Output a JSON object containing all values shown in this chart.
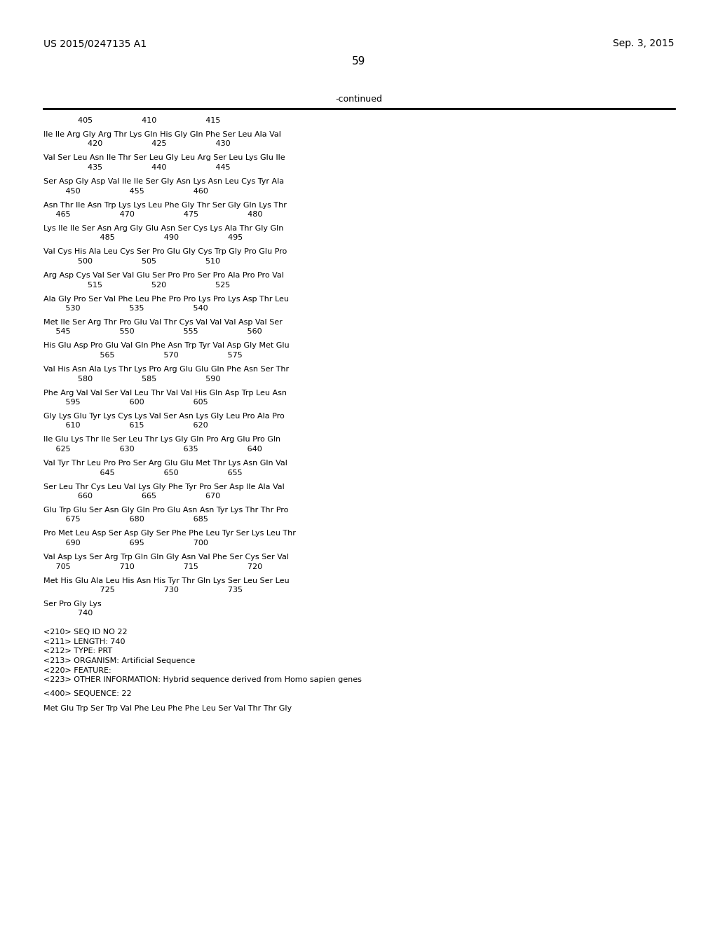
{
  "left_header": "US 2015/0247135 A1",
  "right_header": "Sep. 3, 2015",
  "page_number": "59",
  "continued_label": "-continued",
  "background_color": "#ffffff",
  "text_color": "#000000",
  "sequence_lines": [
    {
      "type": "numbering",
      "text": "              405                    410                    415"
    },
    {
      "type": "blank"
    },
    {
      "type": "sequence",
      "text": "Ile Ile Arg Gly Arg Thr Lys Gln His Gly Gln Phe Ser Leu Ala Val"
    },
    {
      "type": "numbering",
      "text": "                  420                    425                    430"
    },
    {
      "type": "blank"
    },
    {
      "type": "sequence",
      "text": "Val Ser Leu Asn Ile Thr Ser Leu Gly Leu Arg Ser Leu Lys Glu Ile"
    },
    {
      "type": "numbering",
      "text": "                  435                    440                    445"
    },
    {
      "type": "blank"
    },
    {
      "type": "sequence",
      "text": "Ser Asp Gly Asp Val Ile Ile Ser Gly Asn Lys Asn Leu Cys Tyr Ala"
    },
    {
      "type": "numbering",
      "text": "         450                    455                    460"
    },
    {
      "type": "blank"
    },
    {
      "type": "sequence",
      "text": "Asn Thr Ile Asn Trp Lys Lys Leu Phe Gly Thr Ser Gly Gln Lys Thr"
    },
    {
      "type": "numbering",
      "text": "     465                    470                    475                    480"
    },
    {
      "type": "blank"
    },
    {
      "type": "sequence",
      "text": "Lys Ile Ile Ser Asn Arg Gly Glu Asn Ser Cys Lys Ala Thr Gly Gln"
    },
    {
      "type": "numbering",
      "text": "                       485                    490                    495"
    },
    {
      "type": "blank"
    },
    {
      "type": "sequence",
      "text": "Val Cys His Ala Leu Cys Ser Pro Glu Gly Cys Trp Gly Pro Glu Pro"
    },
    {
      "type": "numbering",
      "text": "              500                    505                    510"
    },
    {
      "type": "blank"
    },
    {
      "type": "sequence",
      "text": "Arg Asp Cys Val Ser Val Glu Ser Pro Pro Ser Pro Ala Pro Pro Val"
    },
    {
      "type": "numbering",
      "text": "                  515                    520                    525"
    },
    {
      "type": "blank"
    },
    {
      "type": "sequence",
      "text": "Ala Gly Pro Ser Val Phe Leu Phe Pro Pro Lys Pro Lys Asp Thr Leu"
    },
    {
      "type": "numbering",
      "text": "         530                    535                    540"
    },
    {
      "type": "blank"
    },
    {
      "type": "sequence",
      "text": "Met Ile Ser Arg Thr Pro Glu Val Thr Cys Val Val Val Asp Val Ser"
    },
    {
      "type": "numbering",
      "text": "     545                    550                    555                    560"
    },
    {
      "type": "blank"
    },
    {
      "type": "sequence",
      "text": "His Glu Asp Pro Glu Val Gln Phe Asn Trp Tyr Val Asp Gly Met Glu"
    },
    {
      "type": "numbering",
      "text": "                       565                    570                    575"
    },
    {
      "type": "blank"
    },
    {
      "type": "sequence",
      "text": "Val His Asn Ala Lys Thr Lys Pro Arg Glu Glu Gln Phe Asn Ser Thr"
    },
    {
      "type": "numbering",
      "text": "              580                    585                    590"
    },
    {
      "type": "blank"
    },
    {
      "type": "sequence",
      "text": "Phe Arg Val Val Ser Val Leu Thr Val Val His Gln Asp Trp Leu Asn"
    },
    {
      "type": "numbering",
      "text": "         595                    600                    605"
    },
    {
      "type": "blank"
    },
    {
      "type": "sequence",
      "text": "Gly Lys Glu Tyr Lys Cys Lys Val Ser Asn Lys Gly Leu Pro Ala Pro"
    },
    {
      "type": "numbering",
      "text": "         610                    615                    620"
    },
    {
      "type": "blank"
    },
    {
      "type": "sequence",
      "text": "Ile Glu Lys Thr Ile Ser Leu Thr Lys Gly Gln Pro Arg Glu Pro Gln"
    },
    {
      "type": "numbering",
      "text": "     625                    630                    635                    640"
    },
    {
      "type": "blank"
    },
    {
      "type": "sequence",
      "text": "Val Tyr Thr Leu Pro Pro Ser Arg Glu Glu Met Thr Lys Asn Gln Val"
    },
    {
      "type": "numbering",
      "text": "                       645                    650                    655"
    },
    {
      "type": "blank"
    },
    {
      "type": "sequence",
      "text": "Ser Leu Thr Cys Leu Val Lys Gly Phe Tyr Pro Ser Asp Ile Ala Val"
    },
    {
      "type": "numbering",
      "text": "              660                    665                    670"
    },
    {
      "type": "blank"
    },
    {
      "type": "sequence",
      "text": "Glu Trp Glu Ser Asn Gly Gln Pro Glu Asn Asn Tyr Lys Thr Thr Pro"
    },
    {
      "type": "numbering",
      "text": "         675                    680                    685"
    },
    {
      "type": "blank"
    },
    {
      "type": "sequence",
      "text": "Pro Met Leu Asp Ser Asp Gly Ser Phe Phe Leu Tyr Ser Lys Leu Thr"
    },
    {
      "type": "numbering",
      "text": "         690                    695                    700"
    },
    {
      "type": "blank"
    },
    {
      "type": "sequence",
      "text": "Val Asp Lys Ser Arg Trp Gln Gln Gly Asn Val Phe Ser Cys Ser Val"
    },
    {
      "type": "numbering",
      "text": "     705                    710                    715                    720"
    },
    {
      "type": "blank"
    },
    {
      "type": "sequence",
      "text": "Met His Glu Ala Leu His Asn His Tyr Thr Gln Lys Ser Leu Ser Leu"
    },
    {
      "type": "numbering",
      "text": "                       725                    730                    735"
    },
    {
      "type": "blank"
    },
    {
      "type": "sequence",
      "text": "Ser Pro Gly Lys"
    },
    {
      "type": "numbering",
      "text": "              740"
    },
    {
      "type": "blank"
    },
    {
      "type": "blank"
    },
    {
      "type": "metadata",
      "text": "<210> SEQ ID NO 22"
    },
    {
      "type": "metadata",
      "text": "<211> LENGTH: 740"
    },
    {
      "type": "metadata",
      "text": "<212> TYPE: PRT"
    },
    {
      "type": "metadata",
      "text": "<213> ORGANISM: Artificial Sequence"
    },
    {
      "type": "metadata",
      "text": "<220> FEATURE:"
    },
    {
      "type": "metadata",
      "text": "<223> OTHER INFORMATION: Hybrid sequence derived from Homo sapien genes"
    },
    {
      "type": "blank"
    },
    {
      "type": "metadata",
      "text": "<400> SEQUENCE: 22"
    },
    {
      "type": "blank"
    },
    {
      "type": "sequence",
      "text": "Met Glu Trp Ser Trp Val Phe Leu Phe Phe Leu Ser Val Thr Thr Gly"
    }
  ]
}
